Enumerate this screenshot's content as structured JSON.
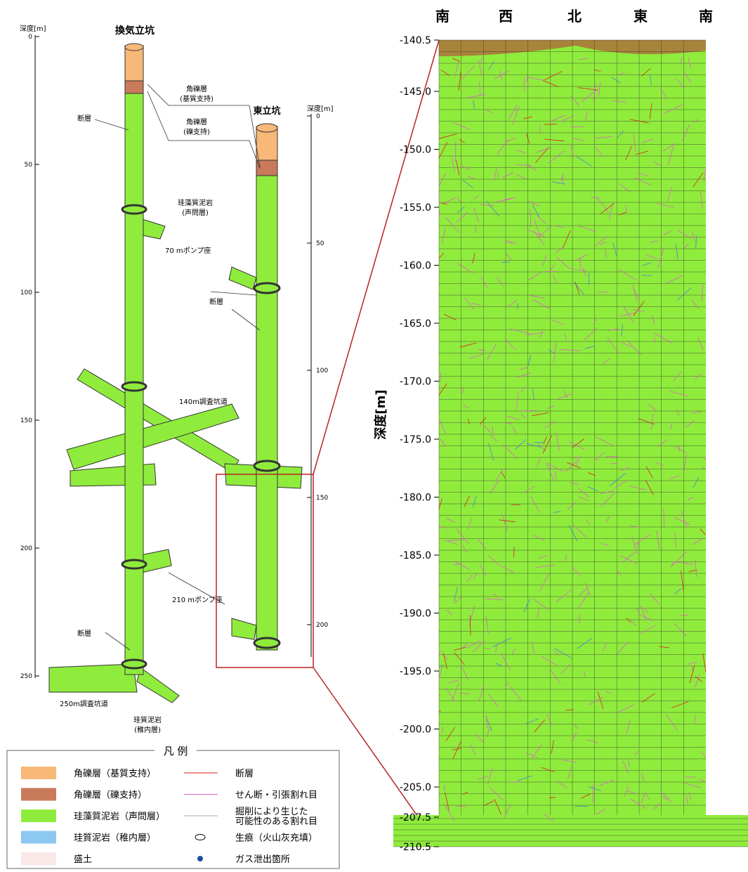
{
  "left": {
    "depth_label": "深度[m]",
    "vent_shaft_title": "換気立坑",
    "east_shaft_title": "東立坑",
    "vent_ticks": [
      "0",
      "50",
      "100",
      "150",
      "200",
      "250"
    ],
    "east_ticks": [
      "0",
      "50",
      "100",
      "150",
      "200"
    ],
    "labels": {
      "breccia_matrix": [
        "角礫層",
        "(基質支持)"
      ],
      "breccia_clast": [
        "角礫層",
        "(礫支持)"
      ],
      "fault_1": "断層",
      "diatom": [
        "珪藻質泥岩",
        "(声問層)"
      ],
      "pump_70": "70 mポンプ座",
      "fault_2": "断層",
      "gallery_140": "140m調査坑道",
      "pump_210": "210 mポンプ座",
      "fault_3": "断層",
      "gallery_250": "250m調査坑道",
      "siliceous": [
        "珪質泥岩",
        "(稚内層)"
      ]
    }
  },
  "right": {
    "directions": [
      "南",
      "西",
      "北",
      "東",
      "南"
    ],
    "axis_label": "深度[m]",
    "ticks": [
      "-140.5",
      "-145.0",
      "-150.0",
      "-155.0",
      "-160.0",
      "-165.0",
      "-170.0",
      "-175.0",
      "-180.0",
      "-185.0",
      "-190.0",
      "-195.0",
      "-200.0",
      "-205.0",
      "-207.5",
      "-210.5"
    ]
  },
  "legend": {
    "title": "凡 例",
    "left_items": [
      "角礫層（基質支持）",
      "角礫層（礫支持）",
      "珪藻質泥岩（声問層）",
      "珪質泥岩（稚内層）",
      "盛土"
    ],
    "right_items": [
      [
        "断層"
      ],
      [
        "せん断・引張割れ目"
      ],
      [
        "掘削により生じた",
        "可能性のある割れ目"
      ],
      [
        "生痕（火山灰充填）"
      ],
      [
        "ガス泄出箇所"
      ]
    ]
  }
}
